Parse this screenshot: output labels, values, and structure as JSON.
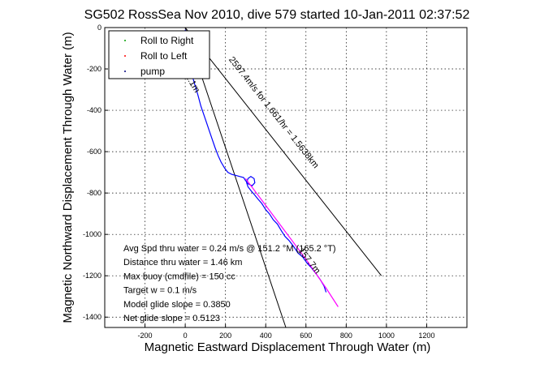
{
  "chart_data": {
    "type": "line",
    "title": "SG502 RossSea Nov 2010, dive 579 started 10-Jan-2011 02:37:52",
    "xlabel": "Magnetic Eastward Displacement Through Water (m)",
    "ylabel": "Magnetic Northward Displacement Through Water (m)",
    "xlim": [
      -400,
      1400
    ],
    "ylim": [
      -1450,
      0
    ],
    "xticks": [
      -200,
      0,
      200,
      400,
      600,
      800,
      1000,
      1200
    ],
    "yticks": [
      0,
      -200,
      -400,
      -600,
      -800,
      -1000,
      -1200,
      -1400
    ],
    "grid": true,
    "legend_position": "top-left",
    "legend": [
      {
        "label": "Roll to Right",
        "color": "#00a000"
      },
      {
        "label": "Roll to Left",
        "color": "#ff0000"
      },
      {
        "label": "pump",
        "color": "#000080"
      }
    ],
    "series": [
      {
        "color": "#0000ff",
        "x": [
          0,
          8,
          14,
          22,
          30,
          40,
          52,
          64,
          78,
          92,
          106,
          120,
          134,
          148,
          164,
          178,
          196,
          212,
          232,
          252,
          270,
          290,
          300,
          312,
          332,
          346,
          342,
          326,
          312,
          305,
          312,
          328,
          346,
          362,
          380,
          400,
          418,
          438,
          458,
          476,
          496,
          516,
          540,
          560,
          584,
          606,
          626,
          650,
          672,
          690,
          700
        ],
        "y": [
          -10,
          -60,
          -110,
          -160,
          -200,
          -250,
          -290,
          -330,
          -380,
          -420,
          -460,
          -500,
          -540,
          -580,
          -620,
          -650,
          -680,
          -700,
          -710,
          -715,
          -720,
          -725,
          -740,
          -755,
          -765,
          -750,
          -730,
          -720,
          -730,
          -750,
          -770,
          -790,
          -810,
          -830,
          -850,
          -880,
          -900,
          -930,
          -950,
          -980,
          -1010,
          -1030,
          -1060,
          -1090,
          -1110,
          -1140,
          -1160,
          -1190,
          -1220,
          -1250,
          -1280
        ]
      },
      {
        "color": "#ff00ff",
        "x": [
          300,
          400,
          500,
          600,
          700,
          760
        ],
        "y": [
          -730,
          -860,
          -990,
          -1120,
          -1260,
          -1350
        ]
      }
    ],
    "reference_lines": [
      {
        "x": [
          0,
          975
        ],
        "y": [
          0,
          -1200
        ]
      },
      {
        "x": [
          0,
          500
        ],
        "y": [
          0,
          -1450
        ]
      }
    ],
    "annotations": [
      {
        "text": "2597.4m/s for 1.661/hr = 1.5638km",
        "x": 215,
        "y": -155
      },
      {
        "text": "157.7m",
        "x": 560,
        "y": -1080
      },
      {
        "text": "2.1m",
        "x": 0,
        "y": -235
      }
    ],
    "stats": [
      "Avg Spd thru water =  0.24 m/s @ 151.2   °M (165.2 °T)",
      "Distance thru water =  1.46 km",
      "Max buoy (cmdfile) = 150 cc",
      "Target w = 0.1 m/s",
      "Model glide slope = 0.3850",
      "Net glide slope = 0.5123"
    ]
  }
}
